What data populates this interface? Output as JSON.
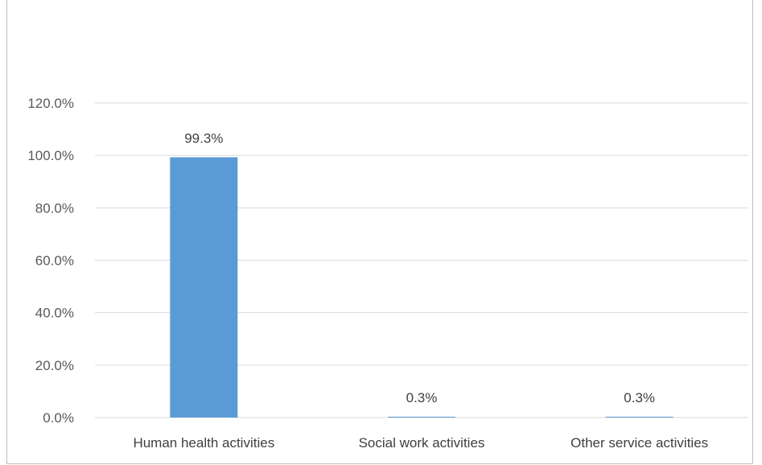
{
  "chart_data": {
    "type": "bar",
    "title": "",
    "xlabel": "",
    "ylabel": "",
    "categories": [
      "Human health activities",
      "Social work activities",
      "Other service activities"
    ],
    "values": [
      99.3,
      0.3,
      0.3
    ],
    "data_labels": [
      "99.3%",
      "0.3%",
      "0.3%"
    ],
    "ylim": [
      0,
      120
    ],
    "yticks": [
      0,
      20,
      40,
      60,
      80,
      100,
      120
    ],
    "ytick_labels": [
      "0.0%",
      "20.0%",
      "40.0%",
      "60.0%",
      "80.0%",
      "100.0%",
      "120.0%"
    ],
    "grid": true,
    "legend": "none",
    "bar_color": "#5b9bd5",
    "grid_color": "#d9d9d9"
  }
}
